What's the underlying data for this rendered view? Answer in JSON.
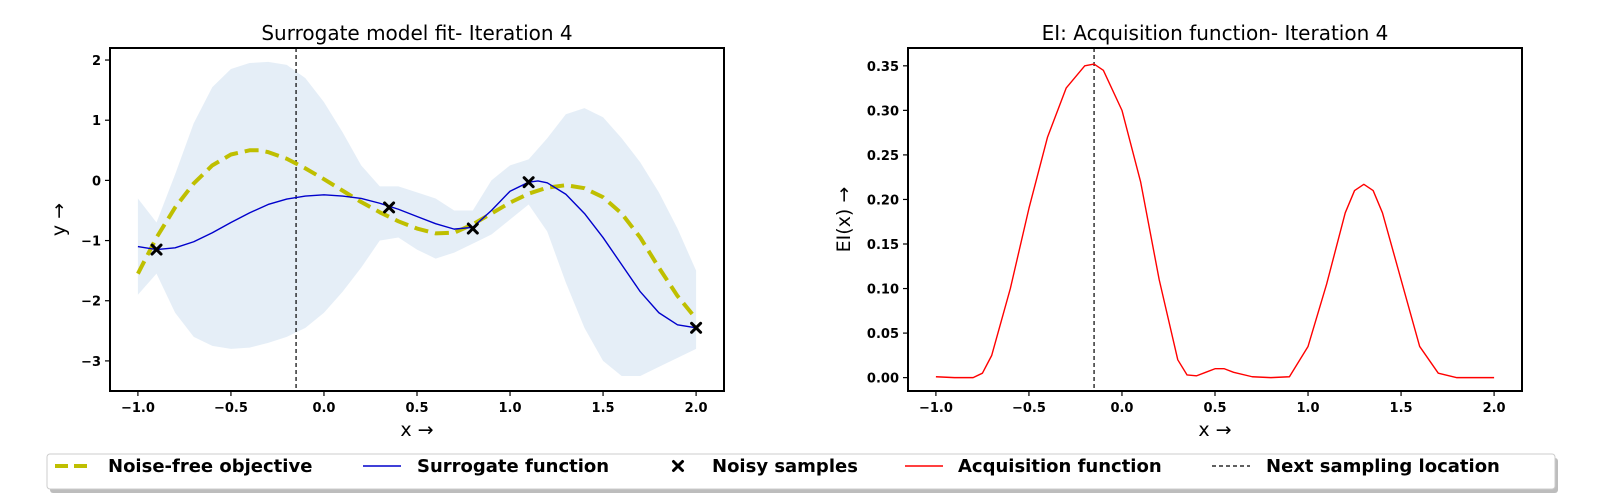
{
  "colors": {
    "objective": "#bfbf00",
    "surrogate": "#0000cc",
    "samples": "#000000",
    "acquisition": "#ff0000",
    "next_location": "#000000",
    "confidence_band": "#cfe0f1"
  },
  "chart_data": [
    {
      "type": "line",
      "title": "Surrogate model fit- Iteration 4",
      "xlabel": "x →",
      "ylabel": "y →",
      "xlim": [
        -1.15,
        2.15
      ],
      "ylim": [
        -3.5,
        2.2
      ],
      "xticks": [
        -1.0,
        -0.5,
        0.0,
        0.5,
        1.0,
        1.5,
        2.0
      ],
      "xtick_labels": [
        "−1.0",
        "−0.5",
        "0.0",
        "0.5",
        "1.0",
        "1.5",
        "2.0"
      ],
      "yticks": [
        2,
        1,
        0,
        -1,
        -2,
        -3
      ],
      "ytick_labels": [
        "2",
        "1",
        "0",
        "−1",
        "−2",
        "−3"
      ],
      "next_sampling_x": -0.15,
      "series": [
        {
          "name": "Noise-free objective",
          "style": "dashed",
          "x": [
            -1.0,
            -0.9,
            -0.8,
            -0.7,
            -0.6,
            -0.5,
            -0.4,
            -0.35,
            -0.3,
            -0.2,
            -0.1,
            0.0,
            0.1,
            0.2,
            0.3,
            0.4,
            0.5,
            0.6,
            0.7,
            0.8,
            0.9,
            1.0,
            1.1,
            1.2,
            1.3,
            1.4,
            1.5,
            1.6,
            1.7,
            1.8,
            1.9,
            2.0
          ],
          "y": [
            -1.55,
            -0.95,
            -0.45,
            -0.05,
            0.25,
            0.43,
            0.5,
            0.5,
            0.47,
            0.36,
            0.2,
            0.02,
            -0.17,
            -0.36,
            -0.53,
            -0.68,
            -0.8,
            -0.88,
            -0.87,
            -0.73,
            -0.55,
            -0.37,
            -0.22,
            -0.12,
            -0.08,
            -0.13,
            -0.28,
            -0.55,
            -0.95,
            -1.45,
            -1.92,
            -2.3
          ]
        },
        {
          "name": "Surrogate function",
          "style": "solid",
          "x": [
            -1.0,
            -0.9,
            -0.8,
            -0.7,
            -0.6,
            -0.5,
            -0.4,
            -0.3,
            -0.2,
            -0.1,
            0.0,
            0.1,
            0.2,
            0.3,
            0.4,
            0.5,
            0.6,
            0.7,
            0.8,
            0.9,
            1.0,
            1.1,
            1.15,
            1.2,
            1.3,
            1.4,
            1.5,
            1.6,
            1.7,
            1.8,
            1.9,
            2.0
          ],
          "y": [
            -1.1,
            -1.15,
            -1.12,
            -1.02,
            -0.87,
            -0.7,
            -0.54,
            -0.4,
            -0.31,
            -0.26,
            -0.24,
            -0.26,
            -0.3,
            -0.38,
            -0.48,
            -0.6,
            -0.72,
            -0.81,
            -0.78,
            -0.5,
            -0.18,
            -0.03,
            -0.01,
            -0.04,
            -0.23,
            -0.55,
            -0.95,
            -1.4,
            -1.85,
            -2.2,
            -2.4,
            -2.45
          ]
        },
        {
          "name": "Noisy samples",
          "style": "marker",
          "x": [
            -0.9,
            0.35,
            0.8,
            1.1,
            2.0
          ],
          "y": [
            -1.15,
            -0.45,
            -0.8,
            -0.03,
            -2.45
          ]
        }
      ],
      "band": {
        "x": [
          -1.0,
          -0.9,
          -0.8,
          -0.7,
          -0.6,
          -0.5,
          -0.4,
          -0.3,
          -0.2,
          -0.1,
          0.0,
          0.1,
          0.2,
          0.3,
          0.4,
          0.5,
          0.6,
          0.7,
          0.8,
          0.9,
          1.0,
          1.1,
          1.2,
          1.3,
          1.4,
          1.5,
          1.6,
          1.7,
          1.8,
          1.9,
          2.0
        ],
        "upper": [
          -0.3,
          -0.7,
          0.1,
          0.95,
          1.55,
          1.85,
          1.95,
          1.97,
          1.92,
          1.7,
          1.3,
          0.8,
          0.25,
          -0.1,
          -0.1,
          -0.2,
          -0.3,
          -0.5,
          -0.5,
          0.0,
          0.25,
          0.35,
          0.7,
          1.1,
          1.2,
          1.05,
          0.7,
          0.3,
          -0.2,
          -0.8,
          -1.5
        ],
        "lower": [
          -1.9,
          -1.55,
          -2.2,
          -2.6,
          -2.75,
          -2.8,
          -2.78,
          -2.7,
          -2.6,
          -2.45,
          -2.2,
          -1.85,
          -1.45,
          -1.0,
          -0.95,
          -1.15,
          -1.3,
          -1.2,
          -1.05,
          -0.9,
          -0.65,
          -0.4,
          -0.85,
          -1.7,
          -2.45,
          -3.0,
          -3.25,
          -3.25,
          -3.1,
          -2.95,
          -2.8
        ]
      }
    },
    {
      "type": "line",
      "title": "EI: Acquisition function- Iteration 4",
      "xlabel": "x →",
      "ylabel": "EI(x) →",
      "xlim": [
        -1.15,
        2.15
      ],
      "ylim": [
        -0.015,
        0.37
      ],
      "xticks": [
        -1.0,
        -0.5,
        0.0,
        0.5,
        1.0,
        1.5,
        2.0
      ],
      "xtick_labels": [
        "−1.0",
        "−0.5",
        "0.0",
        "0.5",
        "1.0",
        "1.5",
        "2.0"
      ],
      "yticks": [
        0.0,
        0.05,
        0.1,
        0.15,
        0.2,
        0.25,
        0.3,
        0.35
      ],
      "ytick_labels": [
        "0.00",
        "0.05",
        "0.10",
        "0.15",
        "0.20",
        "0.25",
        "0.30",
        "0.35"
      ],
      "next_sampling_x": -0.15,
      "series": [
        {
          "name": "Acquisition function",
          "style": "solid",
          "x": [
            -1.0,
            -0.9,
            -0.8,
            -0.75,
            -0.7,
            -0.6,
            -0.5,
            -0.4,
            -0.3,
            -0.2,
            -0.15,
            -0.1,
            0.0,
            0.1,
            0.2,
            0.3,
            0.35,
            0.4,
            0.45,
            0.5,
            0.55,
            0.6,
            0.7,
            0.8,
            0.9,
            1.0,
            1.1,
            1.2,
            1.25,
            1.3,
            1.35,
            1.4,
            1.5,
            1.6,
            1.7,
            1.8,
            1.9,
            2.0
          ],
          "y": [
            0.001,
            0.0,
            0.0,
            0.005,
            0.025,
            0.1,
            0.19,
            0.27,
            0.325,
            0.35,
            0.352,
            0.345,
            0.3,
            0.22,
            0.11,
            0.02,
            0.003,
            0.002,
            0.006,
            0.01,
            0.01,
            0.006,
            0.001,
            0.0,
            0.001,
            0.035,
            0.105,
            0.185,
            0.21,
            0.217,
            0.21,
            0.185,
            0.11,
            0.035,
            0.005,
            0.0,
            0.0,
            0.0
          ]
        }
      ]
    }
  ],
  "legend": {
    "items": [
      {
        "label": "Noise-free objective",
        "kind": "dashed-line",
        "color_key": "objective"
      },
      {
        "label": "Surrogate function",
        "kind": "line",
        "color_key": "surrogate"
      },
      {
        "label": "Noisy samples",
        "kind": "marker-x",
        "color_key": "samples"
      },
      {
        "label": "Acquisition function",
        "kind": "line",
        "color_key": "acquisition"
      },
      {
        "label": "Next sampling location",
        "kind": "dashed-thin",
        "color_key": "next_location"
      }
    ]
  }
}
